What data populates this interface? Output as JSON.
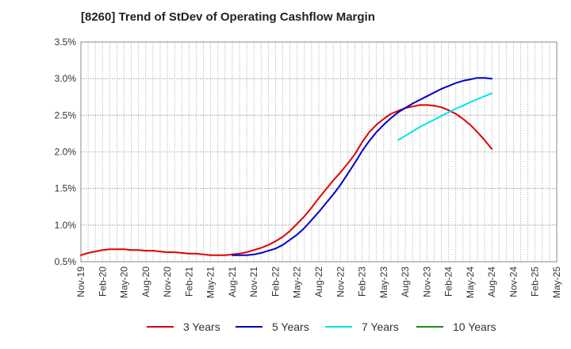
{
  "chart_data": {
    "type": "line",
    "title": "[8260]  Trend of StDev of Operating Cashflow Margin",
    "xlabel": "",
    "ylabel": "",
    "x_ticks": [
      "Nov-19",
      "Feb-20",
      "May-20",
      "Aug-20",
      "Nov-20",
      "Feb-21",
      "May-21",
      "Aug-21",
      "Nov-21",
      "Feb-22",
      "May-22",
      "Aug-22",
      "Nov-22",
      "Feb-23",
      "May-23",
      "Aug-23",
      "Nov-23",
      "Feb-24",
      "May-24",
      "Aug-24",
      "Nov-24",
      "Feb-25",
      "May-25"
    ],
    "y_ticks": [
      "0.5%",
      "1.0%",
      "1.5%",
      "2.0%",
      "2.5%",
      "3.0%",
      "3.5%"
    ],
    "ylim": [
      0.5,
      3.5
    ],
    "grid": true,
    "legend_position": "bottom",
    "series": [
      {
        "name": "3 Years",
        "color": "#e00000",
        "points": [
          [
            "Nov-19",
            0.59
          ],
          [
            "Dec-19",
            0.62
          ],
          [
            "Jan-20",
            0.64
          ],
          [
            "Feb-20",
            0.66
          ],
          [
            "Mar-20",
            0.67
          ],
          [
            "Apr-20",
            0.67
          ],
          [
            "May-20",
            0.67
          ],
          [
            "Jun-20",
            0.66
          ],
          [
            "Jul-20",
            0.66
          ],
          [
            "Aug-20",
            0.65
          ],
          [
            "Sep-20",
            0.65
          ],
          [
            "Oct-20",
            0.64
          ],
          [
            "Nov-20",
            0.63
          ],
          [
            "Dec-20",
            0.63
          ],
          [
            "Jan-21",
            0.62
          ],
          [
            "Feb-21",
            0.61
          ],
          [
            "Mar-21",
            0.61
          ],
          [
            "Apr-21",
            0.6
          ],
          [
            "May-21",
            0.59
          ],
          [
            "Jun-21",
            0.59
          ],
          [
            "Jul-21",
            0.59
          ],
          [
            "Aug-21",
            0.6
          ],
          [
            "Sep-21",
            0.61
          ],
          [
            "Oct-21",
            0.63
          ],
          [
            "Nov-21",
            0.66
          ],
          [
            "Dec-21",
            0.69
          ],
          [
            "Jan-22",
            0.73
          ],
          [
            "Feb-22",
            0.78
          ],
          [
            "Mar-22",
            0.84
          ],
          [
            "Apr-22",
            0.92
          ],
          [
            "May-22",
            1.02
          ],
          [
            "Jun-22",
            1.12
          ],
          [
            "Jul-22",
            1.24
          ],
          [
            "Aug-22",
            1.37
          ],
          [
            "Sep-22",
            1.49
          ],
          [
            "Oct-22",
            1.61
          ],
          [
            "Nov-22",
            1.72
          ],
          [
            "Dec-22",
            1.84
          ],
          [
            "Jan-23",
            1.97
          ],
          [
            "Feb-23",
            2.13
          ],
          [
            "Mar-23",
            2.27
          ],
          [
            "Apr-23",
            2.37
          ],
          [
            "May-23",
            2.45
          ],
          [
            "Jun-23",
            2.52
          ],
          [
            "Jul-23",
            2.56
          ],
          [
            "Aug-23",
            2.6
          ],
          [
            "Sep-23",
            2.62
          ],
          [
            "Oct-23",
            2.64
          ],
          [
            "Nov-23",
            2.64
          ],
          [
            "Dec-23",
            2.63
          ],
          [
            "Jan-24",
            2.61
          ],
          [
            "Feb-24",
            2.57
          ],
          [
            "Mar-24",
            2.52
          ],
          [
            "Apr-24",
            2.45
          ],
          [
            "May-24",
            2.37
          ],
          [
            "Jun-24",
            2.27
          ],
          [
            "Jul-24",
            2.16
          ],
          [
            "Aug-24",
            2.04
          ]
        ]
      },
      {
        "name": "5 Years",
        "color": "#0000cc",
        "points": [
          [
            "Aug-21",
            0.59
          ],
          [
            "Sep-21",
            0.59
          ],
          [
            "Oct-21",
            0.59
          ],
          [
            "Nov-21",
            0.6
          ],
          [
            "Dec-21",
            0.62
          ],
          [
            "Jan-22",
            0.65
          ],
          [
            "Feb-22",
            0.68
          ],
          [
            "Mar-22",
            0.73
          ],
          [
            "Apr-22",
            0.8
          ],
          [
            "May-22",
            0.87
          ],
          [
            "Jun-22",
            0.96
          ],
          [
            "Jul-22",
            1.07
          ],
          [
            "Aug-22",
            1.18
          ],
          [
            "Sep-22",
            1.3
          ],
          [
            "Oct-22",
            1.42
          ],
          [
            "Nov-22",
            1.55
          ],
          [
            "Dec-22",
            1.7
          ],
          [
            "Jan-23",
            1.85
          ],
          [
            "Feb-23",
            2.01
          ],
          [
            "Mar-23",
            2.15
          ],
          [
            "Apr-23",
            2.27
          ],
          [
            "May-23",
            2.37
          ],
          [
            "Jun-23",
            2.46
          ],
          [
            "Jul-23",
            2.54
          ],
          [
            "Aug-23",
            2.6
          ],
          [
            "Sep-23",
            2.66
          ],
          [
            "Oct-23",
            2.71
          ],
          [
            "Nov-23",
            2.76
          ],
          [
            "Dec-23",
            2.81
          ],
          [
            "Jan-24",
            2.86
          ],
          [
            "Feb-24",
            2.9
          ],
          [
            "Mar-24",
            2.94
          ],
          [
            "Apr-24",
            2.97
          ],
          [
            "May-24",
            2.99
          ],
          [
            "Jun-24",
            3.01
          ],
          [
            "Jul-24",
            3.01
          ],
          [
            "Aug-24",
            3.0
          ]
        ]
      },
      {
        "name": "7 Years",
        "color": "#00e5ee",
        "points": [
          [
            "Jul-23",
            2.16
          ],
          [
            "Aug-23",
            2.22
          ],
          [
            "Sep-23",
            2.28
          ],
          [
            "Oct-23",
            2.34
          ],
          [
            "Nov-23",
            2.39
          ],
          [
            "Dec-23",
            2.44
          ],
          [
            "Jan-24",
            2.49
          ],
          [
            "Feb-24",
            2.54
          ],
          [
            "Mar-24",
            2.59
          ],
          [
            "Apr-24",
            2.63
          ],
          [
            "May-24",
            2.68
          ],
          [
            "Jun-24",
            2.72
          ],
          [
            "Jul-24",
            2.76
          ],
          [
            "Aug-24",
            2.8
          ]
        ]
      },
      {
        "name": "10 Years",
        "color": "#1a8a1a",
        "points": []
      }
    ]
  }
}
